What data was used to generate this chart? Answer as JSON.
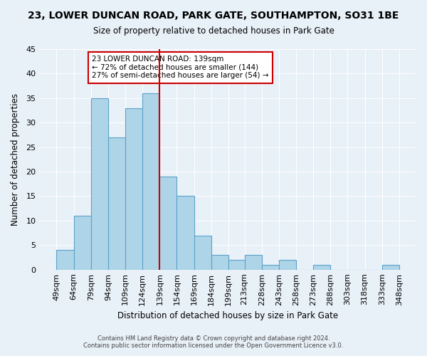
{
  "title": "23, LOWER DUNCAN ROAD, PARK GATE, SOUTHAMPTON, SO31 1BE",
  "subtitle": "Size of property relative to detached houses in Park Gate",
  "xlabel": "Distribution of detached houses by size in Park Gate",
  "ylabel": "Number of detached properties",
  "bar_color": "#aed4e8",
  "bar_edge_color": "#5ba3c9",
  "background_color": "#e8f0f8",
  "bins": [
    49,
    64,
    79,
    94,
    109,
    124,
    139,
    154,
    169,
    184,
    199,
    213,
    228,
    243,
    258,
    273,
    288,
    303,
    318,
    333,
    348
  ],
  "bin_labels": [
    "49sqm",
    "64sqm",
    "79sqm",
    "94sqm",
    "109sqm",
    "124sqm",
    "139sqm",
    "154sqm",
    "169sqm",
    "184sqm",
    "199sqm",
    "213sqm",
    "228sqm",
    "243sqm",
    "258sqm",
    "273sqm",
    "288sqm",
    "303sqm",
    "318sqm",
    "333sqm",
    "348sqm"
  ],
  "counts": [
    4,
    11,
    35,
    27,
    33,
    36,
    19,
    15,
    7,
    3,
    2,
    3,
    1,
    2,
    0,
    1,
    0,
    0,
    0,
    1
  ],
  "ylim": [
    0,
    45
  ],
  "yticks": [
    0,
    5,
    10,
    15,
    20,
    25,
    30,
    35,
    40,
    45
  ],
  "vline_x": 139,
  "vline_color": "#cc0000",
  "annotation_title": "23 LOWER DUNCAN ROAD: 139sqm",
  "annotation_line1": "← 72% of detached houses are smaller (144)",
  "annotation_line2": "27% of semi-detached houses are larger (54) →",
  "annotation_box_color": "#ffffff",
  "annotation_box_edge": "#cc0000",
  "footer_line1": "Contains HM Land Registry data © Crown copyright and database right 2024.",
  "footer_line2": "Contains public sector information licensed under the Open Government Licence v3.0."
}
